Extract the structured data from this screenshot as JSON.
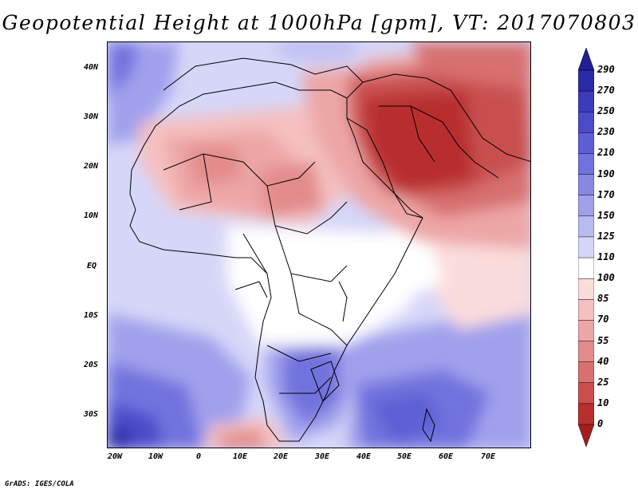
{
  "title": "Geopotential Height at 1000hPa [gpm], VT: 2017070803",
  "credit": "GrADS: IGES/COLA",
  "lat_labels": [
    "40N",
    "30N",
    "20N",
    "10N",
    "EQ",
    "10S",
    "20S",
    "30S"
  ],
  "lon_labels": [
    "20W",
    "10W",
    "0",
    "10E",
    "20E",
    "30E",
    "40E",
    "50E",
    "60E",
    "70E"
  ],
  "colorbar": {
    "levels": [
      "290",
      "270",
      "250",
      "230",
      "210",
      "190",
      "170",
      "150",
      "125",
      "110",
      "100",
      "85",
      "70",
      "55",
      "40",
      "25",
      "10",
      "0"
    ],
    "colors": [
      "#1f1f96",
      "#2b2ba8",
      "#3b3bbb",
      "#4b4bca",
      "#5e5ed6",
      "#7272de",
      "#8888e4",
      "#a0a0ec",
      "#babaf2",
      "#d6d6f8",
      "#ffffff",
      "#fbdcdc",
      "#f5c0c0",
      "#eda6a6",
      "#e38b8b",
      "#d87070",
      "#c94f4f",
      "#b82f2f",
      "#a51d1d"
    ]
  }
}
